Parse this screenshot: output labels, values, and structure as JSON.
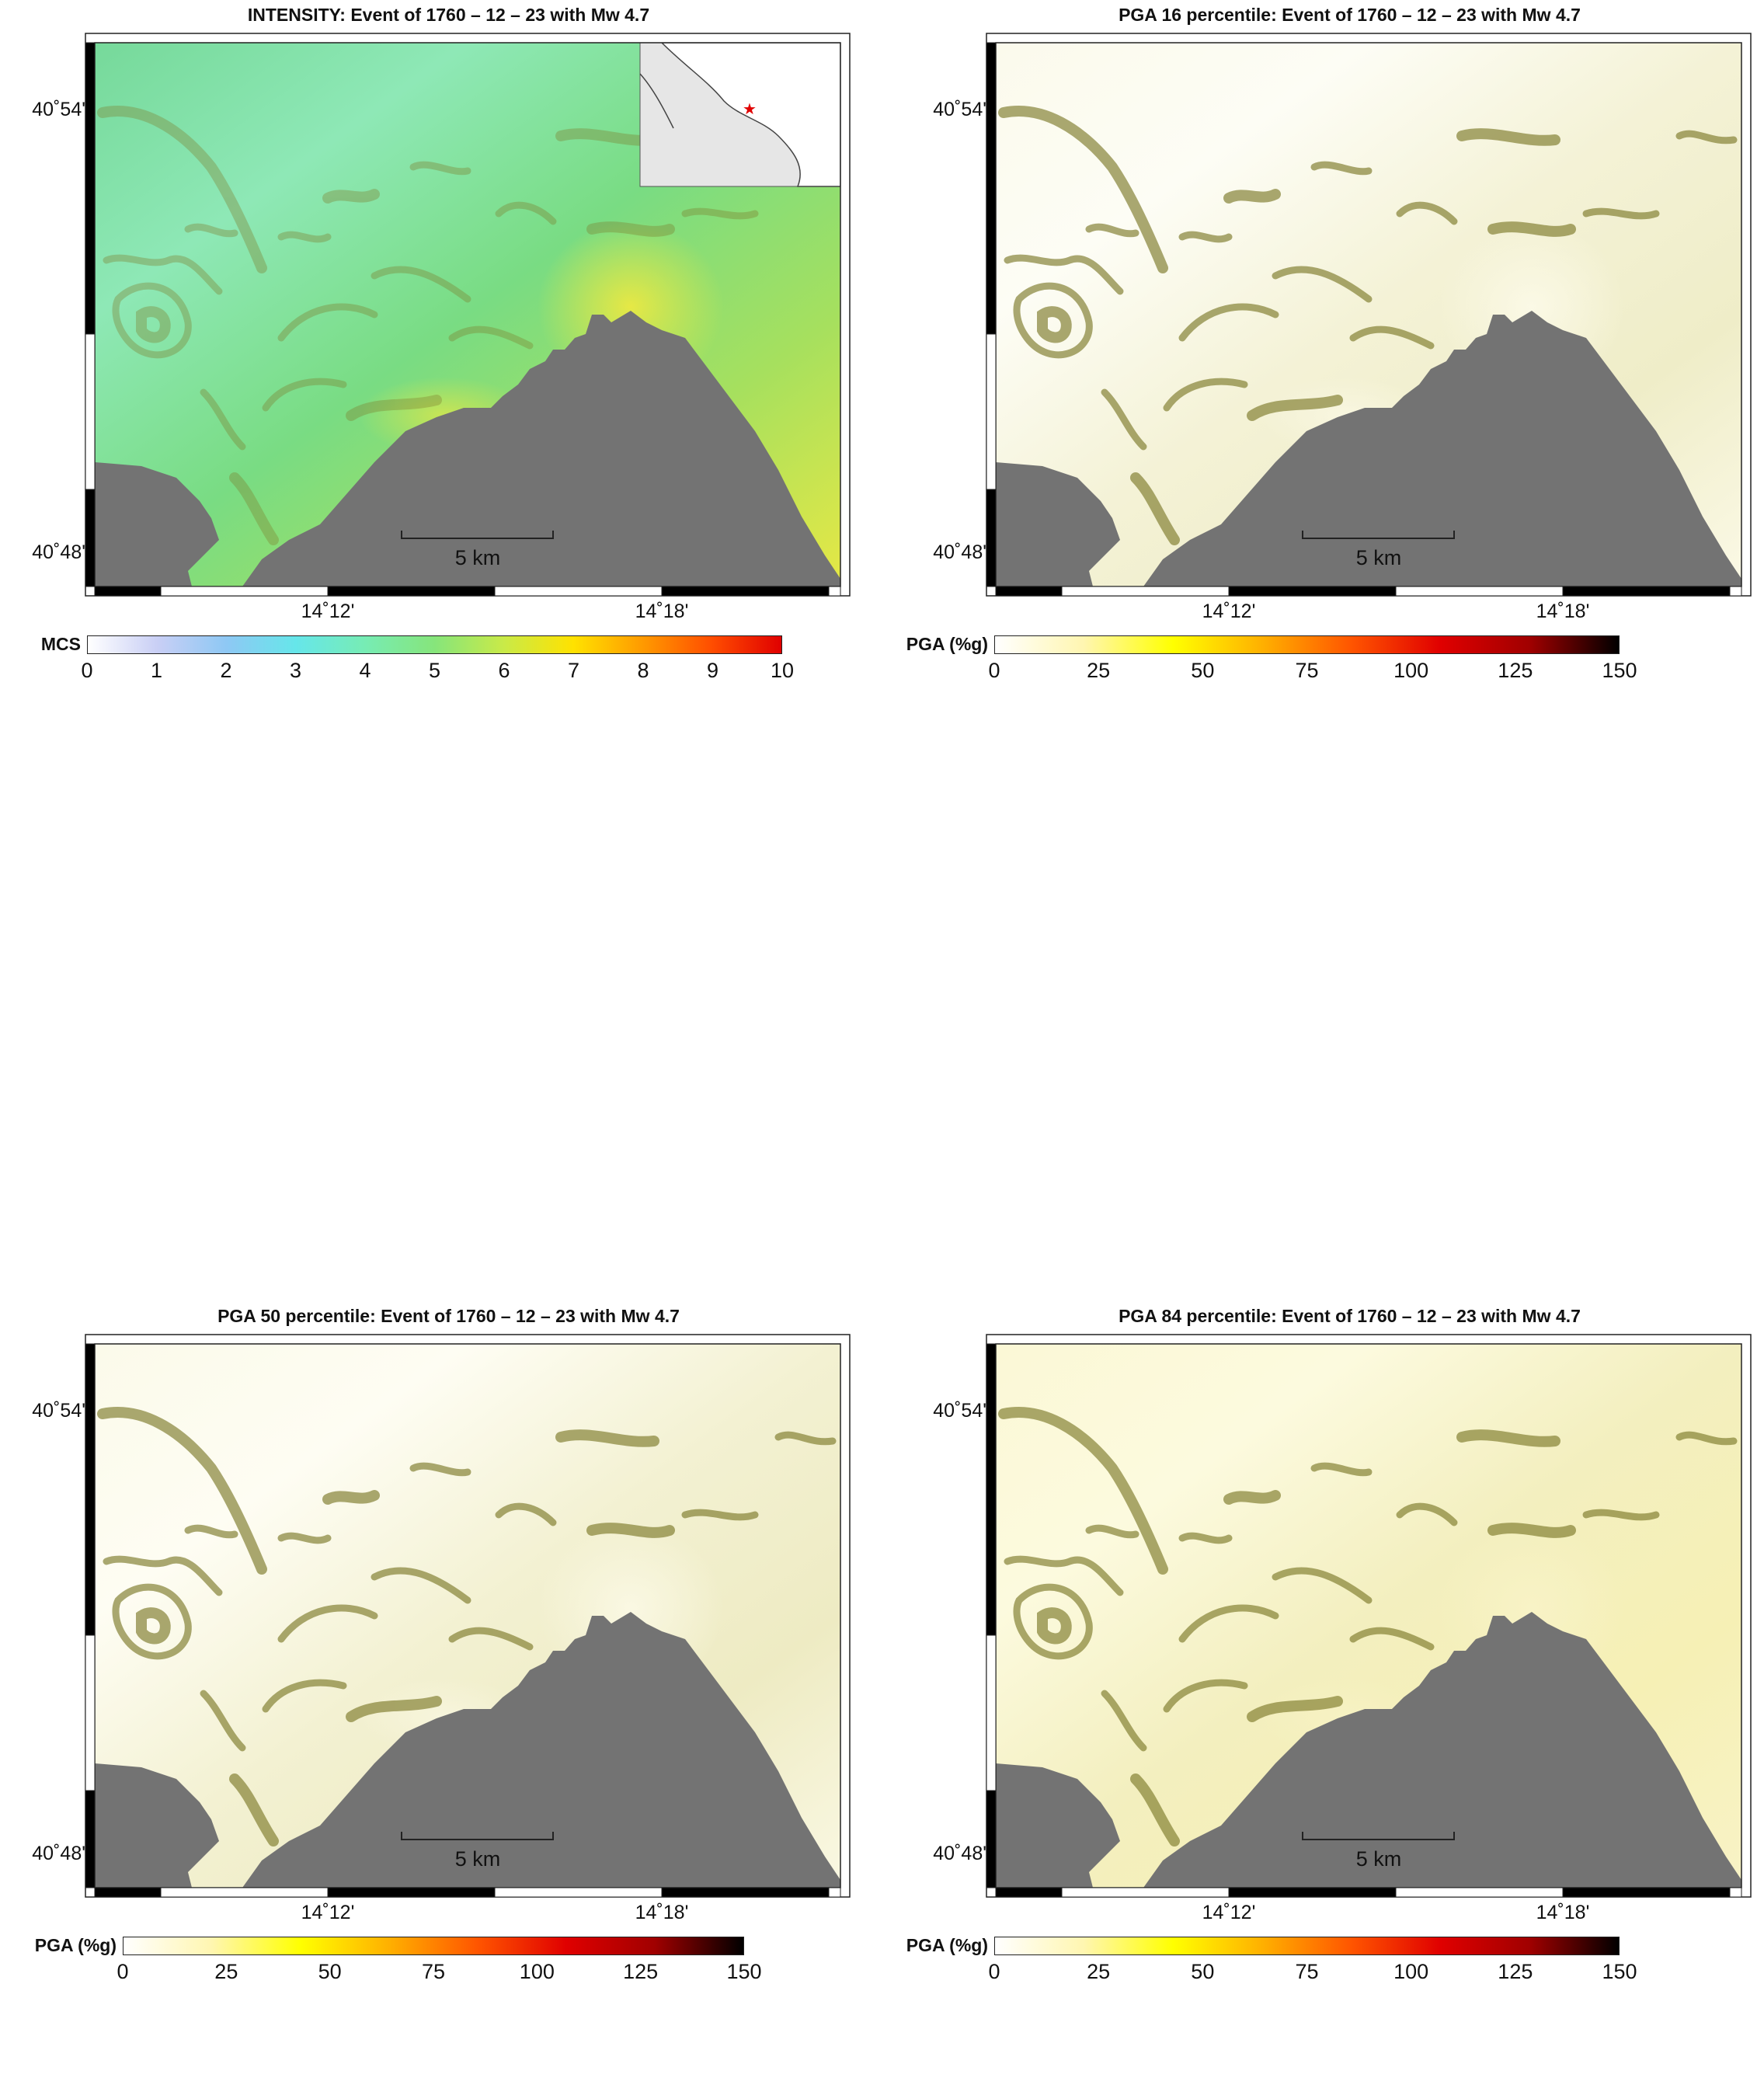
{
  "panels": [
    {
      "id": "intensity",
      "title": "INTENSITY: Event of 1760 – 12 – 23 with Mw 4.7",
      "cbar_label": "MCS",
      "cbar_ticks": [
        "0",
        "1",
        "2",
        "3",
        "4",
        "5",
        "6",
        "7",
        "8",
        "9",
        "10"
      ],
      "cbar_colors": [
        "#ffffff",
        "#c9cff5",
        "#8ec8f4",
        "#66e6ea",
        "#77ecb4",
        "#86e57b",
        "#c9ea48",
        "#ffe200",
        "#ff9a00",
        "#ff4d00",
        "#e00000"
      ],
      "has_inset": true,
      "land": [
        "#76d99a",
        "#8ee8b6",
        "#79dc83",
        "#a6e05e",
        "#e6e845"
      ]
    },
    {
      "id": "pga16",
      "title": "PGA 16 percentile: Event of 1760 – 12 – 23 with Mw 4.7",
      "cbar_label": "PGA (%g)",
      "cbar_ticks": [
        "0",
        "25",
        "50",
        "75",
        "100",
        "125",
        "150"
      ],
      "cbar_colors": [
        "#ffffff",
        "#fff6b0",
        "#ffff00",
        "#ffb000",
        "#ff5500",
        "#e00000",
        "#a00000",
        "#000000"
      ],
      "has_inset": false,
      "land": [
        "#fbfaec",
        "#fdfdf5",
        "#f4f2d6",
        "#efedc8",
        "#fbf9e6"
      ]
    },
    {
      "id": "pga50",
      "title": "PGA 50 percentile: Event of 1760 – 12 – 23 with Mw 4.7",
      "cbar_label": "PGA (%g)",
      "cbar_ticks": [
        "0",
        "25",
        "50",
        "75",
        "100",
        "125",
        "150"
      ],
      "cbar_colors": [
        "#ffffff",
        "#fff6b0",
        "#ffff00",
        "#ffb000",
        "#ff5500",
        "#e00000",
        "#a00000",
        "#000000"
      ],
      "has_inset": false,
      "land": [
        "#fbfaea",
        "#fefdf3",
        "#f3f1d2",
        "#eeebc3",
        "#faf8e3"
      ]
    },
    {
      "id": "pga84",
      "title": "PGA 84 percentile: Event of 1760 – 12 – 23 with Mw 4.7",
      "cbar_label": "PGA (%g)",
      "cbar_ticks": [
        "0",
        "25",
        "50",
        "75",
        "100",
        "125",
        "150"
      ],
      "cbar_colors": [
        "#ffffff",
        "#fff6b0",
        "#ffff00",
        "#ffb000",
        "#ff5500",
        "#e00000",
        "#a00000",
        "#000000"
      ],
      "has_inset": false,
      "land": [
        "#fbf8d6",
        "#fcfade",
        "#f3efbf",
        "#f6f0b5",
        "#f8f3c6"
      ]
    }
  ],
  "axes": {
    "lat_ticks": [
      "40˚54'",
      "40˚48'"
    ],
    "lon_ticks": [
      "14˚12'",
      "14˚18'"
    ]
  },
  "scalebar_label": "5 km",
  "colors": {
    "sea": "#737373",
    "relief_dark": "#7d7a2a",
    "frame": "#222222"
  }
}
